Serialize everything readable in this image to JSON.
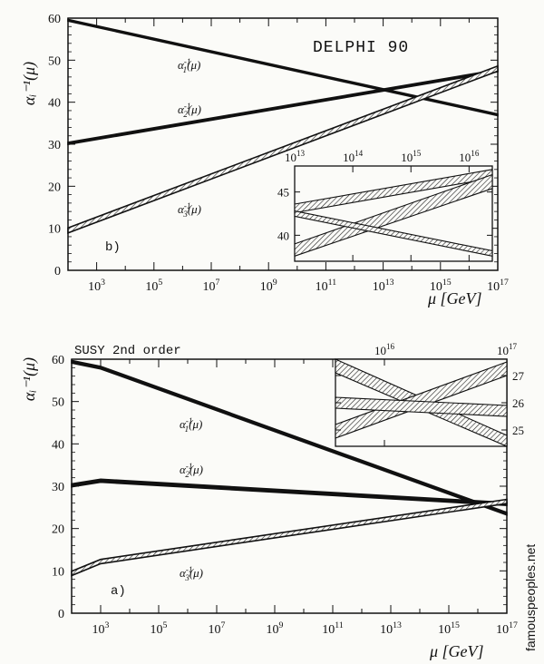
{
  "watermark": "famouspeoples.net",
  "colors": {
    "ink": "#111111",
    "watermark": "#e0302a",
    "background": "#fbfbf8"
  },
  "chart_data": [
    {
      "type": "line",
      "panel_label": "b)",
      "title": "DELPHI 90",
      "ylabel": "αᵢ⁻¹(μ)",
      "xlabel": "μ [GeV]",
      "x_scale": "log10",
      "xlim": [
        2,
        17
      ],
      "ylim": [
        0,
        60
      ],
      "yticks": [
        0,
        10,
        20,
        30,
        40,
        50,
        60
      ],
      "xticks": [
        {
          "exp": 3,
          "label": "10",
          "sup": "3"
        },
        {
          "exp": 5,
          "label": "10",
          "sup": "5"
        },
        {
          "exp": 7,
          "label": "10",
          "sup": "7"
        },
        {
          "exp": 9,
          "label": "10",
          "sup": "9"
        },
        {
          "exp": 11,
          "label": "10",
          "sup": "11"
        },
        {
          "exp": 13,
          "label": "10",
          "sup": "13"
        },
        {
          "exp": 15,
          "label": "10",
          "sup": "15"
        },
        {
          "exp": 17,
          "label": "10",
          "sup": "17"
        }
      ],
      "series": [
        {
          "name": "α₁⁻¹(μ)",
          "label_sup": "-1",
          "label_sub": "1",
          "x": [
            2,
            17
          ],
          "y": [
            59.5,
            37
          ],
          "band": 0.4
        },
        {
          "name": "α₂⁻¹(μ)",
          "label_sup": "-1",
          "label_sub": "2",
          "x": [
            2,
            17
          ],
          "y": [
            30.2,
            47.5
          ],
          "band": 0.5
        },
        {
          "name": "α₃⁻¹(μ)",
          "label_sup": "-1",
          "label_sub": "3",
          "x": [
            2,
            17
          ],
          "y": [
            9.5,
            48
          ],
          "band": 1.2
        }
      ],
      "inset": {
        "xlim": [
          13,
          16.4
        ],
        "ylim": [
          37,
          48
        ],
        "yticks": [
          40,
          45
        ],
        "xticks": [
          {
            "exp": 13,
            "label": "10",
            "sup": "13"
          },
          {
            "exp": 14,
            "label": "10",
            "sup": "14"
          },
          {
            "exp": 15,
            "label": "10",
            "sup": "15"
          },
          {
            "exp": 16,
            "label": "10",
            "sup": "16"
          }
        ],
        "bands": [
          {
            "x": [
              13,
              16.4
            ],
            "lower": [
              42.6,
              46.6
            ],
            "upper": [
              43.6,
              47.6
            ]
          },
          {
            "x": [
              13,
              16.4
            ],
            "lower": [
              37.6,
              45.4
            ],
            "upper": [
              39.0,
              47.0
            ]
          },
          {
            "x": [
              13,
              16.4
            ],
            "lower": [
              42.2,
              37.6
            ],
            "upper": [
              42.8,
              38.2
            ]
          }
        ]
      }
    },
    {
      "type": "line",
      "panel_label": "a)",
      "title": "SUSY 2nd order",
      "ylabel": "αᵢ⁻¹(μ)",
      "xlabel": "μ [GeV]",
      "x_scale": "log10",
      "xlim": [
        2,
        17
      ],
      "ylim": [
        0,
        60
      ],
      "yticks": [
        0,
        10,
        20,
        30,
        40,
        50,
        60
      ],
      "xticks": [
        {
          "exp": 3,
          "label": "10",
          "sup": "3"
        },
        {
          "exp": 5,
          "label": "10",
          "sup": "5"
        },
        {
          "exp": 7,
          "label": "10",
          "sup": "7"
        },
        {
          "exp": 9,
          "label": "10",
          "sup": "9"
        },
        {
          "exp": 11,
          "label": "10",
          "sup": "11"
        },
        {
          "exp": 13,
          "label": "10",
          "sup": "13"
        },
        {
          "exp": 15,
          "label": "10",
          "sup": "15"
        },
        {
          "exp": 17,
          "label": "10",
          "sup": "17"
        }
      ],
      "series": [
        {
          "name": "α₁⁻¹(μ)",
          "label_sup": "-1",
          "label_sub": "1",
          "x": [
            2,
            3,
            17
          ],
          "y": [
            59.4,
            58.0,
            23.5
          ],
          "band": 0.6
        },
        {
          "name": "α₂⁻¹(μ)",
          "label_sup": "-1",
          "label_sub": "2",
          "x": [
            2,
            3,
            17
          ],
          "y": [
            30.2,
            31.3,
            25.8
          ],
          "band": 0.7
        },
        {
          "name": "α₃⁻¹(μ)",
          "label_sup": "-1",
          "label_sub": "3",
          "x": [
            2,
            3,
            17
          ],
          "y": [
            9.4,
            12.2,
            26.4
          ],
          "band": 1.0
        }
      ],
      "inset": {
        "xlim": [
          15.6,
          17
        ],
        "ylim": [
          24.4,
          27.6
        ],
        "yticks": [
          25,
          26,
          27
        ],
        "xticks": [
          {
            "exp": 16,
            "label": "10",
            "sup": "16"
          },
          {
            "exp": 17,
            "label": "10",
            "sup": "17"
          }
        ],
        "bands": [
          {
            "x": [
              15.6,
              17
            ],
            "lower": [
              27.1,
              24.4
            ],
            "upper": [
              27.6,
              24.8
            ]
          },
          {
            "x": [
              15.6,
              17
            ],
            "lower": [
              24.7,
              27.0
            ],
            "upper": [
              25.2,
              27.5
            ]
          },
          {
            "x": [
              15.6,
              17
            ],
            "lower": [
              25.8,
              25.5
            ],
            "upper": [
              26.2,
              25.9
            ]
          }
        ]
      }
    }
  ]
}
